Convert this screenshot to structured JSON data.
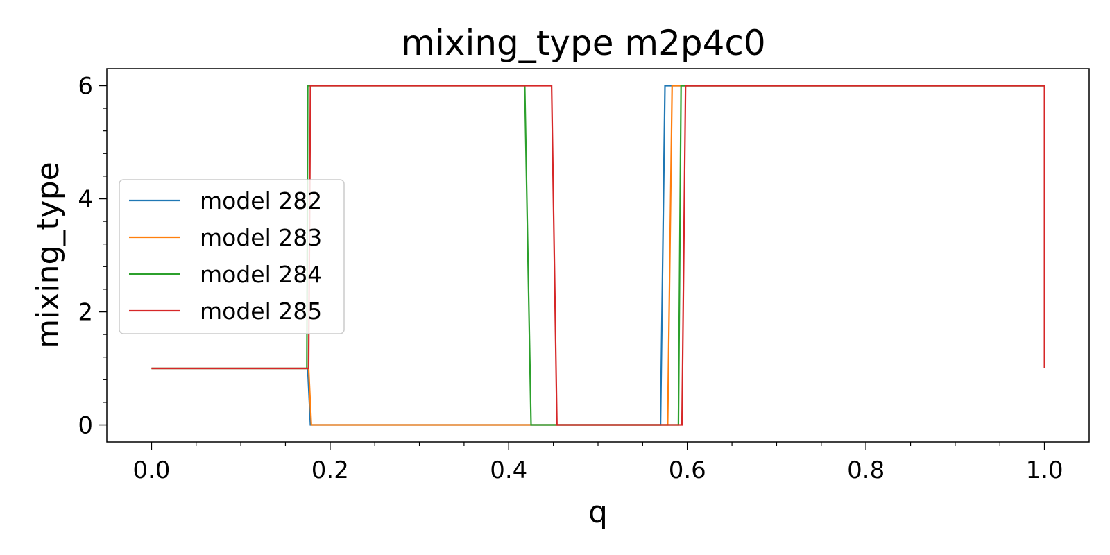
{
  "chart_data": {
    "type": "line",
    "title": "mixing_type m2p4c0",
    "xlabel": "q",
    "ylabel": "mixing_type",
    "xlim": [
      -0.05,
      1.05
    ],
    "ylim": [
      -0.3,
      6.3
    ],
    "xticks": [
      0.0,
      0.2,
      0.4,
      0.6,
      0.8,
      1.0
    ],
    "xtick_labels": [
      "0.0",
      "0.2",
      "0.4",
      "0.6",
      "0.8",
      "1.0"
    ],
    "yticks": [
      0,
      2,
      4,
      6
    ],
    "ytick_labels": [
      "0",
      "2",
      "4",
      "6"
    ],
    "grid": false,
    "legend_position": "center-left",
    "series": [
      {
        "name": "model 282",
        "color": "#1f77b4",
        "x": [
          0.0,
          0.175,
          0.178,
          0.57,
          0.575,
          1.0,
          1.0
        ],
        "y": [
          1,
          1,
          0,
          0,
          6,
          6,
          1
        ]
      },
      {
        "name": "model 283",
        "color": "#ff7f0e",
        "x": [
          0.0,
          0.176,
          0.179,
          0.578,
          0.583,
          1.0,
          1.0
        ],
        "y": [
          1,
          1,
          0,
          0,
          6,
          6,
          1
        ]
      },
      {
        "name": "model 284",
        "color": "#2ca02c",
        "x": [
          0.0,
          0.174,
          0.175,
          0.418,
          0.425,
          0.455,
          0.455,
          0.59,
          0.593,
          1.0,
          1.0
        ],
        "y": [
          1,
          1,
          6,
          6,
          0,
          0,
          0,
          0,
          6,
          6,
          1
        ]
      },
      {
        "name": "model 285",
        "color": "#d62728",
        "x": [
          0.0,
          0.176,
          0.178,
          0.448,
          0.454,
          0.594,
          0.598,
          1.0,
          1.0
        ],
        "y": [
          1,
          1,
          6,
          6,
          0,
          0,
          6,
          6,
          1
        ]
      }
    ]
  }
}
